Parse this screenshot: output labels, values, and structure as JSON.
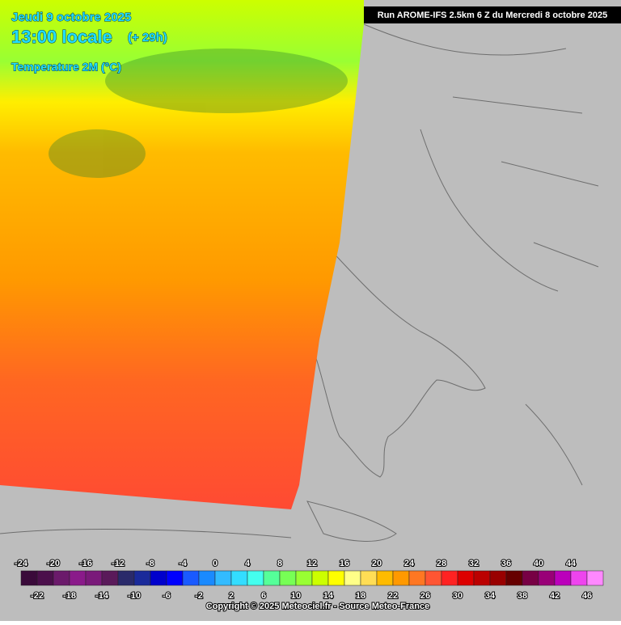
{
  "header": {
    "run": "Run AROME-IFS 2.5km 6 Z du Mercredi 8 octobre 2025"
  },
  "title": {
    "date": "Jeudi 9 octobre 2025",
    "time": "13:00 locale",
    "lead": "(+ 29h)",
    "variable": "Temperature 2M (°C)"
  },
  "legend": {
    "ticks": [
      -24,
      -22,
      -20,
      -18,
      -16,
      -14,
      -12,
      -10,
      -8,
      -6,
      -4,
      -2,
      0,
      2,
      4,
      6,
      8,
      10,
      12,
      14,
      16,
      18,
      20,
      22,
      24,
      26,
      28,
      30,
      32,
      34,
      36,
      38,
      40,
      42,
      44,
      46
    ],
    "colors": [
      "#3a0a3a",
      "#4b0f4b",
      "#6b1a6b",
      "#8a1a8a",
      "#7a1a7a",
      "#5a1a5a",
      "#2a2a6a",
      "#1a2a9a",
      "#0000cc",
      "#0000ff",
      "#1a5aff",
      "#1a8aff",
      "#33bbff",
      "#33ddff",
      "#44ffee",
      "#55ff99",
      "#77ff55",
      "#99ff33",
      "#ccff00",
      "#ffff00",
      "#ffff88",
      "#ffdd55",
      "#ffbb00",
      "#ff9900",
      "#ff7722",
      "#ff5533",
      "#ff2222",
      "#dd0000",
      "#bb0000",
      "#990000",
      "#660000",
      "#770044",
      "#990077",
      "#bb00bb",
      "#ee44ee",
      "#ff88ff"
    ]
  },
  "copyright": "Copyright © 2025 Meteociel.fr - Source Meteo-France"
}
